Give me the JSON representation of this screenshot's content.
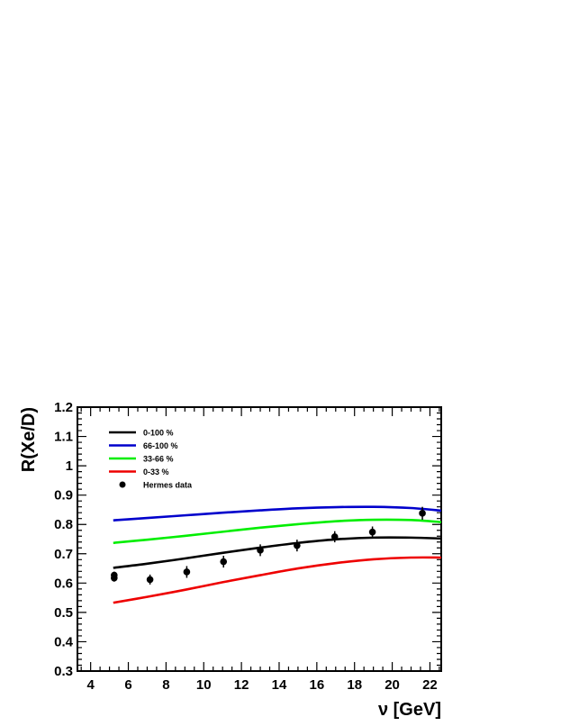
{
  "chart_data": {
    "type": "line",
    "xlabel": "ν [GeV]",
    "ylabel": "R(Xe/D)",
    "xlim": [
      3.3,
      22.6
    ],
    "ylim": [
      0.3,
      1.2
    ],
    "x_ticks": [
      4,
      6,
      8,
      10,
      12,
      14,
      16,
      18,
      20,
      22
    ],
    "y_ticks": [
      0.3,
      0.4,
      0.5,
      0.6,
      0.7,
      0.8,
      0.9,
      1,
      1.1,
      1.2
    ],
    "x_tick_labels": [
      "4",
      "6",
      "8",
      "10",
      "12",
      "14",
      "16",
      "18",
      "20",
      "22"
    ],
    "y_tick_labels": [
      "0.3",
      "0.4",
      "0.5",
      "0.6",
      "0.7",
      "0.8",
      "0.9",
      "1",
      "1.1",
      "1.2"
    ],
    "legend_position": "top-left",
    "grid": false,
    "series": [
      {
        "name": "0-100 %",
        "color": "#000000",
        "x": [
          5.2,
          7,
          9,
          11,
          13,
          15,
          17,
          19,
          21,
          22.6
        ],
        "y": [
          0.652,
          0.666,
          0.684,
          0.703,
          0.721,
          0.737,
          0.749,
          0.755,
          0.755,
          0.752
        ]
      },
      {
        "name": "66-100 %",
        "color": "#0000cc",
        "x": [
          5.2,
          7,
          9,
          11,
          13,
          15,
          17,
          19,
          21,
          22.6
        ],
        "y": [
          0.814,
          0.822,
          0.831,
          0.84,
          0.848,
          0.855,
          0.859,
          0.86,
          0.856,
          0.847
        ]
      },
      {
        "name": "33-66 %",
        "color": "#00ee00",
        "x": [
          5.2,
          7,
          9,
          11,
          13,
          15,
          17,
          19,
          21,
          22.6
        ],
        "y": [
          0.737,
          0.748,
          0.761,
          0.775,
          0.789,
          0.801,
          0.811,
          0.816,
          0.815,
          0.808
        ]
      },
      {
        "name": "0-33 %",
        "color": "#ee0000",
        "x": [
          5.2,
          7,
          9,
          11,
          13,
          15,
          17,
          19,
          21,
          22.6
        ],
        "y": [
          0.533,
          0.553,
          0.577,
          0.603,
          0.627,
          0.65,
          0.668,
          0.681,
          0.687,
          0.687
        ]
      }
    ],
    "points": {
      "name": "Hermes data",
      "color": "#000000",
      "x": [
        5.25,
        5.25,
        7.15,
        9.1,
        11.05,
        13.0,
        14.95,
        16.95,
        18.95,
        21.6
      ],
      "y": [
        0.617,
        0.627,
        0.612,
        0.638,
        0.673,
        0.712,
        0.728,
        0.758,
        0.774,
        0.838
      ],
      "err": [
        0.012,
        0.012,
        0.017,
        0.02,
        0.02,
        0.02,
        0.02,
        0.019,
        0.019,
        0.022
      ]
    }
  }
}
